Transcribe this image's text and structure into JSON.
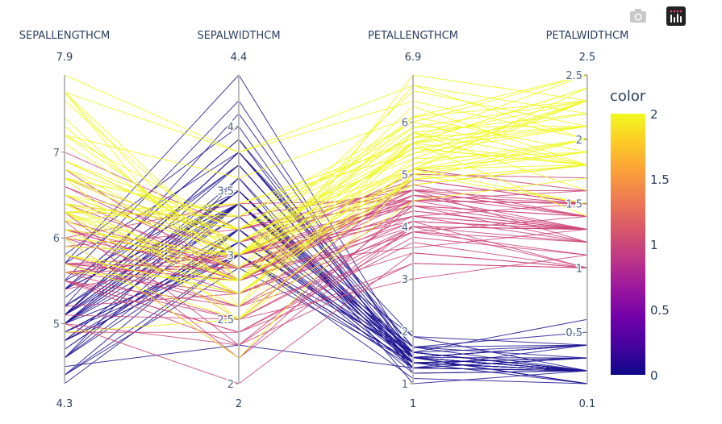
{
  "modebar": {
    "buttons": [
      {
        "icon": "camera-icon",
        "title": "Download plot as a png"
      },
      {
        "icon": "plotly-logo-icon",
        "title": "Produced with Plotly"
      }
    ]
  },
  "chart_data": {
    "type": "parcoords",
    "dimensions": [
      {
        "label": "SEPALLENGTHCM",
        "range": [
          4.3,
          7.9
        ],
        "range_labels": [
          "7.9",
          "4.3"
        ],
        "ticks": [
          5,
          6,
          7
        ]
      },
      {
        "label": "SEPALWIDTHCM",
        "range": [
          2,
          4.4
        ],
        "range_labels": [
          "4.4",
          "2"
        ],
        "ticks": [
          2,
          2.5,
          3,
          3.5,
          4
        ]
      },
      {
        "label": "PETALLENGTHCM",
        "range": [
          1,
          6.9
        ],
        "range_labels": [
          "6.9",
          "1"
        ],
        "ticks": [
          1,
          2,
          3,
          4,
          5,
          6
        ]
      },
      {
        "label": "PETALWIDTHCM",
        "range": [
          0.1,
          2.5
        ],
        "range_labels": [
          "2.5",
          "0.1"
        ],
        "ticks": [
          0.5,
          1,
          1.5,
          2,
          2.5
        ]
      }
    ],
    "colorbar": {
      "title": "color",
      "range": [
        0,
        2
      ],
      "ticks": [
        0,
        0.5,
        1,
        1.5,
        2
      ],
      "colorscale": [
        "#0d0887",
        "#46039f",
        "#7201a8",
        "#9c179e",
        "#bd3786",
        "#d8576b",
        "#ed7953",
        "#fb9f3a",
        "#fdca26",
        "#f0f921"
      ]
    },
    "rows": [
      [
        5.1,
        3.5,
        1.4,
        0.2,
        0
      ],
      [
        4.9,
        3.0,
        1.4,
        0.2,
        0
      ],
      [
        4.7,
        3.2,
        1.3,
        0.2,
        0
      ],
      [
        4.6,
        3.1,
        1.5,
        0.2,
        0
      ],
      [
        5.0,
        3.6,
        1.4,
        0.2,
        0
      ],
      [
        5.4,
        3.9,
        1.7,
        0.4,
        0
      ],
      [
        4.6,
        3.4,
        1.4,
        0.3,
        0
      ],
      [
        5.0,
        3.4,
        1.5,
        0.2,
        0
      ],
      [
        4.4,
        2.9,
        1.4,
        0.2,
        0
      ],
      [
        4.9,
        3.1,
        1.5,
        0.1,
        0
      ],
      [
        5.4,
        3.7,
        1.5,
        0.2,
        0
      ],
      [
        4.8,
        3.4,
        1.6,
        0.2,
        0
      ],
      [
        4.8,
        3.0,
        1.4,
        0.1,
        0
      ],
      [
        4.3,
        3.0,
        1.1,
        0.1,
        0
      ],
      [
        5.8,
        4.0,
        1.2,
        0.2,
        0
      ],
      [
        5.7,
        4.4,
        1.5,
        0.4,
        0
      ],
      [
        5.4,
        3.9,
        1.3,
        0.4,
        0
      ],
      [
        5.1,
        3.5,
        1.4,
        0.3,
        0
      ],
      [
        5.7,
        3.8,
        1.7,
        0.3,
        0
      ],
      [
        5.1,
        3.8,
        1.5,
        0.3,
        0
      ],
      [
        5.4,
        3.4,
        1.7,
        0.2,
        0
      ],
      [
        5.1,
        3.7,
        1.5,
        0.4,
        0
      ],
      [
        4.6,
        3.6,
        1.0,
        0.2,
        0
      ],
      [
        5.1,
        3.3,
        1.7,
        0.5,
        0
      ],
      [
        4.8,
        3.4,
        1.9,
        0.2,
        0
      ],
      [
        5.0,
        3.0,
        1.6,
        0.2,
        0
      ],
      [
        5.0,
        3.4,
        1.6,
        0.4,
        0
      ],
      [
        5.2,
        3.5,
        1.5,
        0.2,
        0
      ],
      [
        5.2,
        3.4,
        1.4,
        0.2,
        0
      ],
      [
        4.7,
        3.2,
        1.6,
        0.2,
        0
      ],
      [
        4.8,
        3.1,
        1.6,
        0.2,
        0
      ],
      [
        5.4,
        3.4,
        1.5,
        0.4,
        0
      ],
      [
        5.2,
        4.1,
        1.5,
        0.1,
        0
      ],
      [
        5.5,
        4.2,
        1.4,
        0.2,
        0
      ],
      [
        4.9,
        3.1,
        1.5,
        0.1,
        0
      ],
      [
        5.0,
        3.2,
        1.2,
        0.2,
        0
      ],
      [
        5.5,
        3.5,
        1.3,
        0.2,
        0
      ],
      [
        4.9,
        3.1,
        1.5,
        0.1,
        0
      ],
      [
        4.4,
        3.0,
        1.3,
        0.2,
        0
      ],
      [
        5.1,
        3.4,
        1.5,
        0.2,
        0
      ],
      [
        5.0,
        3.5,
        1.3,
        0.3,
        0
      ],
      [
        4.5,
        2.3,
        1.3,
        0.3,
        0
      ],
      [
        4.4,
        3.2,
        1.3,
        0.2,
        0
      ],
      [
        5.0,
        3.5,
        1.6,
        0.6,
        0
      ],
      [
        5.1,
        3.8,
        1.9,
        0.4,
        0
      ],
      [
        4.8,
        3.0,
        1.4,
        0.3,
        0
      ],
      [
        5.1,
        3.8,
        1.6,
        0.2,
        0
      ],
      [
        4.6,
        3.2,
        1.4,
        0.2,
        0
      ],
      [
        5.3,
        3.7,
        1.5,
        0.2,
        0
      ],
      [
        5.0,
        3.3,
        1.4,
        0.2,
        0
      ],
      [
        7.0,
        3.2,
        4.7,
        1.4,
        1
      ],
      [
        6.4,
        3.2,
        4.5,
        1.5,
        1
      ],
      [
        6.9,
        3.1,
        4.9,
        1.5,
        1
      ],
      [
        5.5,
        2.3,
        4.0,
        1.3,
        1
      ],
      [
        6.5,
        2.8,
        4.6,
        1.5,
        1
      ],
      [
        5.7,
        2.8,
        4.5,
        1.3,
        1
      ],
      [
        6.3,
        3.3,
        4.7,
        1.6,
        1
      ],
      [
        4.9,
        2.4,
        3.3,
        1.0,
        1
      ],
      [
        6.6,
        2.9,
        4.6,
        1.3,
        1
      ],
      [
        5.2,
        2.7,
        3.9,
        1.4,
        1
      ],
      [
        5.0,
        2.0,
        3.5,
        1.0,
        1
      ],
      [
        5.9,
        3.0,
        4.2,
        1.5,
        1
      ],
      [
        6.0,
        2.2,
        4.0,
        1.0,
        1
      ],
      [
        6.1,
        2.9,
        4.7,
        1.4,
        1
      ],
      [
        5.6,
        2.9,
        3.6,
        1.3,
        1
      ],
      [
        6.7,
        3.1,
        4.4,
        1.4,
        1
      ],
      [
        5.6,
        3.0,
        4.5,
        1.5,
        1
      ],
      [
        5.8,
        2.7,
        4.1,
        1.0,
        1
      ],
      [
        6.2,
        2.2,
        4.5,
        1.5,
        1
      ],
      [
        5.6,
        2.5,
        3.9,
        1.1,
        1
      ],
      [
        5.9,
        3.2,
        4.8,
        1.8,
        1
      ],
      [
        6.1,
        2.8,
        4.0,
        1.3,
        1
      ],
      [
        6.3,
        2.5,
        4.9,
        1.5,
        1
      ],
      [
        6.1,
        2.8,
        4.7,
        1.2,
        1
      ],
      [
        6.4,
        2.9,
        4.3,
        1.3,
        1
      ],
      [
        6.6,
        3.0,
        4.4,
        1.4,
        1
      ],
      [
        6.8,
        2.8,
        4.8,
        1.4,
        1
      ],
      [
        6.7,
        3.0,
        5.0,
        1.7,
        1
      ],
      [
        6.0,
        2.9,
        4.5,
        1.5,
        1
      ],
      [
        5.7,
        2.6,
        3.5,
        1.0,
        1
      ],
      [
        5.5,
        2.4,
        3.8,
        1.1,
        1
      ],
      [
        5.5,
        2.4,
        3.7,
        1.0,
        1
      ],
      [
        5.8,
        2.7,
        3.9,
        1.2,
        1
      ],
      [
        6.0,
        2.7,
        5.1,
        1.6,
        1
      ],
      [
        5.4,
        3.0,
        4.5,
        1.5,
        1
      ],
      [
        6.0,
        3.4,
        4.5,
        1.6,
        1
      ],
      [
        6.7,
        3.1,
        4.7,
        1.5,
        1
      ],
      [
        6.3,
        2.3,
        4.4,
        1.3,
        1
      ],
      [
        5.6,
        3.0,
        4.1,
        1.3,
        1
      ],
      [
        5.5,
        2.5,
        4.0,
        1.3,
        1
      ],
      [
        5.5,
        2.6,
        4.4,
        1.2,
        1
      ],
      [
        6.1,
        3.0,
        4.6,
        1.4,
        1
      ],
      [
        5.8,
        2.6,
        4.0,
        1.2,
        1
      ],
      [
        5.0,
        2.3,
        3.3,
        1.0,
        1
      ],
      [
        5.6,
        2.7,
        4.2,
        1.3,
        1
      ],
      [
        5.7,
        3.0,
        4.2,
        1.2,
        1
      ],
      [
        5.7,
        2.9,
        4.2,
        1.3,
        1
      ],
      [
        6.2,
        2.9,
        4.3,
        1.3,
        1
      ],
      [
        5.1,
        2.5,
        3.0,
        1.1,
        1
      ],
      [
        5.7,
        2.8,
        4.1,
        1.3,
        1
      ],
      [
        6.3,
        3.3,
        6.0,
        2.5,
        2
      ],
      [
        5.8,
        2.7,
        5.1,
        1.9,
        2
      ],
      [
        7.1,
        3.0,
        5.9,
        2.1,
        2
      ],
      [
        6.3,
        2.9,
        5.6,
        1.8,
        2
      ],
      [
        6.5,
        3.0,
        5.8,
        2.2,
        2
      ],
      [
        7.6,
        3.0,
        6.6,
        2.1,
        2
      ],
      [
        4.9,
        2.5,
        4.5,
        1.7,
        2
      ],
      [
        7.3,
        2.9,
        6.3,
        1.8,
        2
      ],
      [
        6.7,
        2.5,
        5.8,
        1.8,
        2
      ],
      [
        7.2,
        3.6,
        6.1,
        2.5,
        2
      ],
      [
        6.5,
        3.2,
        5.1,
        2.0,
        2
      ],
      [
        6.4,
        2.7,
        5.3,
        1.9,
        2
      ],
      [
        6.8,
        3.0,
        5.5,
        2.1,
        2
      ],
      [
        5.7,
        2.5,
        5.0,
        2.0,
        2
      ],
      [
        5.8,
        2.8,
        5.1,
        2.4,
        2
      ],
      [
        6.4,
        3.2,
        5.3,
        2.3,
        2
      ],
      [
        6.5,
        3.0,
        5.5,
        1.8,
        2
      ],
      [
        7.7,
        3.8,
        6.7,
        2.2,
        2
      ],
      [
        7.7,
        2.6,
        6.9,
        2.3,
        2
      ],
      [
        6.0,
        2.2,
        5.0,
        1.5,
        2
      ],
      [
        6.9,
        3.2,
        5.7,
        2.3,
        2
      ],
      [
        5.6,
        2.8,
        4.9,
        2.0,
        2
      ],
      [
        7.7,
        2.8,
        6.7,
        2.0,
        2
      ],
      [
        6.3,
        2.7,
        4.9,
        1.8,
        2
      ],
      [
        6.7,
        3.3,
        5.7,
        2.1,
        2
      ],
      [
        7.2,
        3.2,
        6.0,
        1.8,
        2
      ],
      [
        6.2,
        2.8,
        4.8,
        1.8,
        2
      ],
      [
        6.1,
        3.0,
        4.9,
        1.8,
        2
      ],
      [
        6.4,
        2.8,
        5.6,
        2.1,
        2
      ],
      [
        7.2,
        3.0,
        5.8,
        1.6,
        2
      ],
      [
        7.4,
        2.8,
        6.1,
        1.9,
        2
      ],
      [
        7.9,
        3.8,
        6.4,
        2.0,
        2
      ],
      [
        6.4,
        2.8,
        5.6,
        2.2,
        2
      ],
      [
        6.3,
        2.8,
        5.1,
        1.5,
        2
      ],
      [
        6.1,
        2.6,
        5.6,
        1.4,
        2
      ],
      [
        7.7,
        3.0,
        6.1,
        2.3,
        2
      ],
      [
        6.3,
        3.4,
        5.6,
        2.4,
        2
      ],
      [
        6.4,
        3.1,
        5.5,
        1.8,
        2
      ],
      [
        6.0,
        3.0,
        4.8,
        1.8,
        2
      ],
      [
        6.9,
        3.1,
        5.4,
        2.1,
        2
      ],
      [
        6.7,
        3.1,
        5.6,
        2.4,
        2
      ],
      [
        6.9,
        3.1,
        5.1,
        2.3,
        2
      ],
      [
        5.8,
        2.7,
        5.1,
        1.9,
        2
      ],
      [
        6.8,
        3.2,
        5.9,
        2.3,
        2
      ],
      [
        6.7,
        3.3,
        5.7,
        2.5,
        2
      ],
      [
        6.7,
        3.0,
        5.2,
        2.3,
        2
      ],
      [
        6.3,
        2.5,
        5.0,
        1.9,
        2
      ],
      [
        6.5,
        3.0,
        5.2,
        2.0,
        2
      ],
      [
        6.2,
        3.4,
        5.4,
        2.3,
        2
      ],
      [
        5.9,
        3.0,
        5.1,
        1.8,
        2
      ]
    ]
  }
}
